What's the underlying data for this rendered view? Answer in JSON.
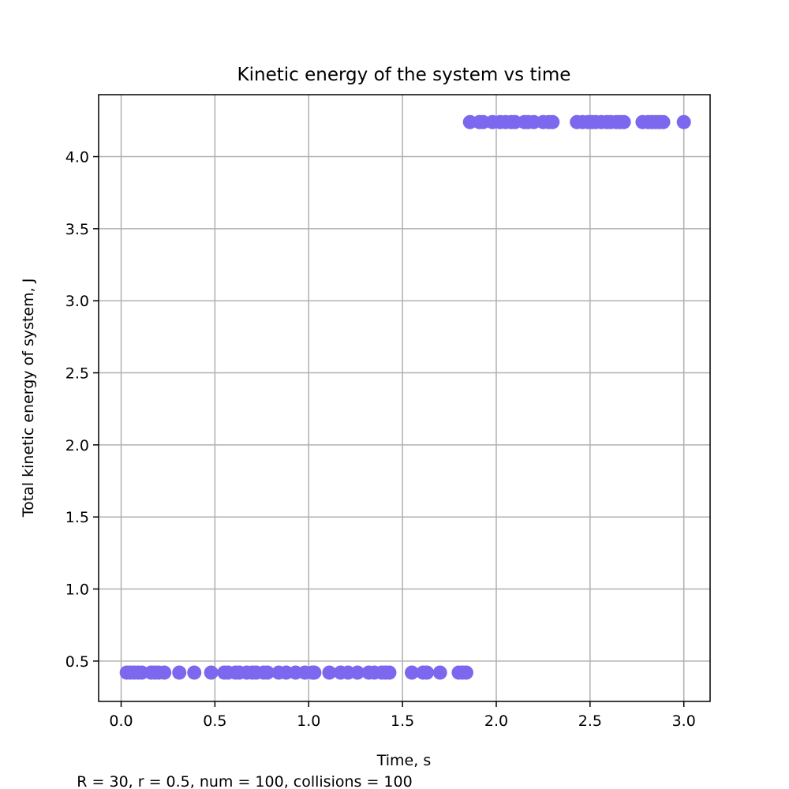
{
  "chart_data": {
    "type": "scatter",
    "title": "Kinetic energy of the system vs time",
    "xlabel": "Time, s",
    "ylabel": "Total kinetic energy of system, J",
    "caption": "R = 30, r = 0.5, num = 100, collisions = 100",
    "xlim": [
      -0.12,
      3.14
    ],
    "ylim": [
      0.22,
      4.43
    ],
    "xticks": [
      "0.0",
      "0.5",
      "1.0",
      "1.5",
      "2.0",
      "2.5",
      "3.0"
    ],
    "yticks": [
      "0.5",
      "1.0",
      "1.5",
      "2.0",
      "2.5",
      "3.0",
      "3.5",
      "4.0"
    ],
    "grid": true,
    "marker_color": "#7b68ee",
    "series": [
      {
        "x": [
          0.03,
          0.05,
          0.07,
          0.09,
          0.11,
          0.16,
          0.18,
          0.2,
          0.23,
          0.31,
          0.39,
          0.48,
          0.55,
          0.57,
          0.61,
          0.63,
          0.67,
          0.7,
          0.72,
          0.76,
          0.78,
          0.84,
          0.88,
          0.93,
          0.98,
          1.02,
          1.03,
          1.11,
          1.17,
          1.21,
          1.26,
          1.32,
          1.35,
          1.39,
          1.41,
          1.43,
          1.55,
          1.61,
          1.63,
          1.7,
          1.8,
          1.82,
          1.84
        ],
        "y": [
          0.42,
          0.42,
          0.42,
          0.42,
          0.42,
          0.42,
          0.42,
          0.42,
          0.42,
          0.42,
          0.42,
          0.42,
          0.42,
          0.42,
          0.42,
          0.42,
          0.42,
          0.42,
          0.42,
          0.42,
          0.42,
          0.42,
          0.42,
          0.42,
          0.42,
          0.42,
          0.42,
          0.42,
          0.42,
          0.42,
          0.42,
          0.42,
          0.42,
          0.42,
          0.42,
          0.42,
          0.42,
          0.42,
          0.42,
          0.42,
          0.42,
          0.42,
          0.42
        ]
      },
      {
        "x": [
          1.86,
          1.91,
          1.93,
          1.98,
          2.02,
          2.05,
          2.08,
          2.1,
          2.15,
          2.17,
          2.2,
          2.25,
          2.28,
          2.3,
          2.43,
          2.46,
          2.49,
          2.51,
          2.53,
          2.56,
          2.59,
          2.61,
          2.64,
          2.66,
          2.68,
          2.78,
          2.81,
          2.83,
          2.85,
          2.87,
          2.89,
          3.0
        ],
        "y": [
          4.24,
          4.24,
          4.24,
          4.24,
          4.24,
          4.24,
          4.24,
          4.24,
          4.24,
          4.24,
          4.24,
          4.24,
          4.24,
          4.24,
          4.24,
          4.24,
          4.24,
          4.24,
          4.24,
          4.24,
          4.24,
          4.24,
          4.24,
          4.24,
          4.24,
          4.24,
          4.24,
          4.24,
          4.24,
          4.24,
          4.24,
          4.24
        ]
      }
    ]
  }
}
